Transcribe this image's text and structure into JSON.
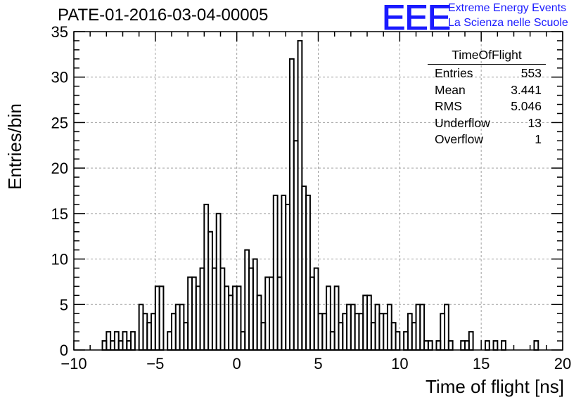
{
  "chart_data": {
    "type": "histogram",
    "title": "PATE-01-2016-03-04-00005",
    "xlabel": "Time of flight [ns]",
    "ylabel": "Entries/bin",
    "xlim": [
      -10,
      20
    ],
    "ylim": [
      0,
      35
    ],
    "bin_width": 0.25,
    "grid": true,
    "x_ticks": [
      "−10",
      "−5",
      "0",
      "5",
      "10",
      "15",
      "20"
    ],
    "y_ticks": [
      "0",
      "5",
      "10",
      "15",
      "20",
      "25",
      "30",
      "35"
    ],
    "x_tick_values": [
      -10,
      -5,
      0,
      5,
      10,
      15,
      20
    ],
    "y_tick_values": [
      0,
      5,
      10,
      15,
      20,
      25,
      30,
      35
    ],
    "bins": [
      [
        -8.25,
        1
      ],
      [
        -8.0,
        2
      ],
      [
        -7.75,
        1
      ],
      [
        -7.5,
        2
      ],
      [
        -7.25,
        1
      ],
      [
        -7.0,
        2
      ],
      [
        -6.75,
        1
      ],
      [
        -6.5,
        2
      ],
      [
        -6.0,
        5
      ],
      [
        -5.75,
        4
      ],
      [
        -5.5,
        3
      ],
      [
        -5.25,
        4
      ],
      [
        -5.0,
        7
      ],
      [
        -4.75,
        7
      ],
      [
        -4.25,
        2
      ],
      [
        -4.0,
        4
      ],
      [
        -3.75,
        5
      ],
      [
        -3.5,
        5
      ],
      [
        -3.25,
        3
      ],
      [
        -3.0,
        8
      ],
      [
        -2.75,
        8
      ],
      [
        -2.5,
        7
      ],
      [
        -2.25,
        9
      ],
      [
        -2.0,
        16
      ],
      [
        -1.75,
        13
      ],
      [
        -1.5,
        9
      ],
      [
        -1.25,
        15
      ],
      [
        -1.0,
        9
      ],
      [
        -0.75,
        7
      ],
      [
        -0.5,
        6
      ],
      [
        -0.25,
        7
      ],
      [
        0.0,
        7
      ],
      [
        0.25,
        2
      ],
      [
        0.5,
        11
      ],
      [
        0.75,
        9
      ],
      [
        1.0,
        10
      ],
      [
        1.25,
        6
      ],
      [
        1.5,
        3
      ],
      [
        1.75,
        8
      ],
      [
        2.0,
        8
      ],
      [
        2.25,
        17
      ],
      [
        2.5,
        8
      ],
      [
        2.75,
        17
      ],
      [
        3.0,
        16
      ],
      [
        3.25,
        32
      ],
      [
        3.5,
        23
      ],
      [
        3.75,
        34
      ],
      [
        4.0,
        18
      ],
      [
        4.25,
        17
      ],
      [
        4.5,
        8
      ],
      [
        4.75,
        9
      ],
      [
        5.0,
        4
      ],
      [
        5.25,
        4
      ],
      [
        5.5,
        7
      ],
      [
        5.75,
        2
      ],
      [
        6.0,
        7
      ],
      [
        6.25,
        3
      ],
      [
        6.5,
        4
      ],
      [
        6.75,
        5
      ],
      [
        7.0,
        5
      ],
      [
        7.25,
        4
      ],
      [
        7.5,
        4
      ],
      [
        7.75,
        6
      ],
      [
        8.0,
        6
      ],
      [
        8.25,
        3
      ],
      [
        8.5,
        5
      ],
      [
        8.75,
        4
      ],
      [
        9.0,
        4
      ],
      [
        9.25,
        5
      ],
      [
        9.5,
        3
      ],
      [
        9.75,
        2
      ],
      [
        10.0,
        0
      ],
      [
        10.25,
        2
      ],
      [
        10.5,
        4
      ],
      [
        10.75,
        3
      ],
      [
        11.0,
        5
      ],
      [
        11.25,
        5
      ],
      [
        11.5,
        1
      ],
      [
        11.75,
        1
      ],
      [
        12.0,
        0
      ],
      [
        12.25,
        1
      ],
      [
        12.5,
        4
      ],
      [
        12.75,
        5
      ],
      [
        13.0,
        1
      ],
      [
        13.25,
        0
      ],
      [
        13.5,
        0
      ],
      [
        13.75,
        1
      ],
      [
        14.0,
        1
      ],
      [
        14.25,
        2
      ],
      [
        14.5,
        0
      ],
      [
        14.75,
        0
      ],
      [
        15.0,
        0
      ],
      [
        15.25,
        1
      ],
      [
        15.5,
        0
      ],
      [
        15.75,
        1
      ],
      [
        16.0,
        0
      ],
      [
        16.25,
        1
      ],
      [
        16.5,
        0
      ],
      [
        16.75,
        0
      ],
      [
        17.0,
        0
      ],
      [
        17.25,
        0
      ],
      [
        17.5,
        0
      ],
      [
        17.75,
        0
      ],
      [
        18.0,
        0
      ],
      [
        18.25,
        1
      ],
      [
        18.5,
        0
      ]
    ]
  },
  "logo": {
    "mark": "EEE",
    "line1": "Extreme Energy Events",
    "line2": "La Scienza nelle Scuole"
  },
  "stats": {
    "title": "TimeOfFlight",
    "rows": [
      {
        "label": "Entries",
        "value": "553"
      },
      {
        "label": "Mean",
        "value": "3.441"
      },
      {
        "label": "RMS",
        "value": "5.046"
      },
      {
        "label": "Underflow",
        "value": "13"
      },
      {
        "label": "Overflow",
        "value": "1"
      }
    ]
  }
}
